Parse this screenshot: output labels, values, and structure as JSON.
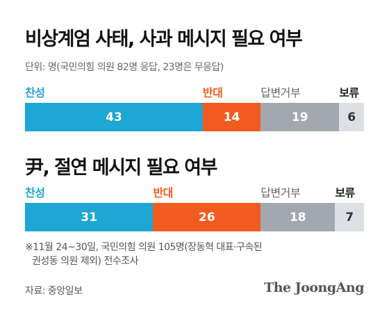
{
  "header": {
    "title1": "비상계엄 사태, 사과 메시지 필요 여부",
    "unit_note": "단위: 명(국민의힘 의원 82명 응답, 23명은 무응답)",
    "title2": "尹, 절연 메시지 필요 여부"
  },
  "footer": {
    "note_line1": "※11월 24~30일, 국민의힘 의원 105명(장동혁 대표·구속된",
    "note_line2": "권성동 의원 제외) 전수조사",
    "source": "자료: 중앙일보",
    "brand": "The JoongAng"
  },
  "colors": {
    "approve": "#1ea6d4",
    "oppose": "#f25b1f",
    "refuse": "#a3a7af",
    "reserve": "#dcdfe3",
    "reserve_text": "#333333"
  },
  "chart_data": [
    {
      "type": "bar",
      "stacked": "horizontal-100",
      "title": "비상계엄 사태, 사과 메시지 필요 여부",
      "categories": [
        "찬성",
        "반대",
        "답변거부",
        "보류"
      ],
      "values": [
        43,
        14,
        19,
        6
      ],
      "unit": "명"
    },
    {
      "type": "bar",
      "stacked": "horizontal-100",
      "title": "尹, 절연 메시지 필요 여부",
      "categories": [
        "찬성",
        "반대",
        "답변거부",
        "보류"
      ],
      "values": [
        31,
        26,
        18,
        7
      ],
      "unit": "명"
    }
  ]
}
